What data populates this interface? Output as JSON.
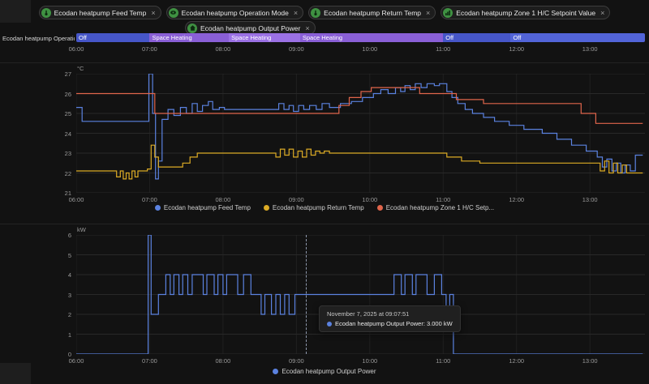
{
  "header": {
    "chips": [
      {
        "label": "Ecodan heatpump Feed Temp",
        "icon": "thermometer-icon"
      },
      {
        "label": "Ecodan heatpump Operation Mode",
        "icon": "eye-icon"
      },
      {
        "label": "Ecodan heatpump Return Temp",
        "icon": "thermometer-icon"
      },
      {
        "label": "Ecodan heatpump Zone 1 H/C Setpoint Value",
        "icon": "chart-icon"
      },
      {
        "label": "Ecodan heatpump Output Power",
        "icon": "home-icon"
      }
    ],
    "chip_close_glyph": "×"
  },
  "timeline": {
    "entity_label": "Ecodan heatpump Operation Mo...",
    "x_range": [
      6,
      13.75
    ],
    "ticks": [
      "06:00",
      "07:00",
      "08:00",
      "09:00",
      "10:00",
      "11:00",
      "12:00",
      "13:00"
    ],
    "segments": [
      {
        "label": "Off",
        "start": 6,
        "end": 7,
        "color": "#4656c8"
      },
      {
        "label": "Space Heating",
        "start": 7,
        "end": 8.08,
        "color": "#8a5fd6"
      },
      {
        "label": "Space Heating",
        "start": 8.08,
        "end": 9.05,
        "color": "#9b71e4"
      },
      {
        "label": "Space Heating",
        "start": 9.05,
        "end": 11,
        "color": "#8a5fd6"
      },
      {
        "label": "Off",
        "start": 11,
        "end": 11.92,
        "color": "#4656c8"
      },
      {
        "label": "Off",
        "start": 11.92,
        "end": 13.75,
        "color": "#5264d8"
      }
    ]
  },
  "chart_data": [
    {
      "type": "line",
      "unit": "°C",
      "x_range": [
        6,
        13.75
      ],
      "y_range": [
        21,
        27
      ],
      "y_ticks": [
        21,
        22,
        23,
        24,
        25,
        26,
        27
      ],
      "x_ticks": [
        "06:00",
        "07:00",
        "08:00",
        "09:00",
        "10:00",
        "11:00",
        "12:00",
        "13:00"
      ],
      "legend_position": "bottom",
      "grid": true,
      "series": [
        {
          "name": "Ecodan heatpump Feed Temp",
          "legend": "Ecodan heatpump Feed Temp",
          "color": "#5b82e0",
          "points": [
            [
              6,
              25.3
            ],
            [
              6.08,
              24.6
            ],
            [
              6.97,
              24.6
            ],
            [
              6.99,
              27
            ],
            [
              7.04,
              25
            ],
            [
              7.08,
              21.7
            ],
            [
              7.12,
              22.6
            ],
            [
              7.17,
              24.7
            ],
            [
              7.25,
              25.2
            ],
            [
              7.33,
              24.9
            ],
            [
              7.42,
              25.3
            ],
            [
              7.5,
              25
            ],
            [
              7.58,
              25.5
            ],
            [
              7.65,
              25.1
            ],
            [
              7.72,
              25.4
            ],
            [
              7.8,
              25.6
            ],
            [
              7.86,
              25.2
            ],
            [
              7.95,
              25.3
            ],
            [
              8.02,
              25.2
            ],
            [
              8.7,
              25.2
            ],
            [
              8.76,
              25.5
            ],
            [
              8.83,
              25.2
            ],
            [
              8.9,
              25.4
            ],
            [
              8.96,
              25.1
            ],
            [
              9.03,
              25.4
            ],
            [
              9.1,
              25.2
            ],
            [
              9.18,
              25.4
            ],
            [
              9.27,
              25.2
            ],
            [
              9.35,
              25.5
            ],
            [
              9.45,
              25.3
            ],
            [
              9.6,
              25.5
            ],
            [
              9.75,
              25.6
            ],
            [
              9.9,
              25.8
            ],
            [
              10.05,
              26
            ],
            [
              10.15,
              26.2
            ],
            [
              10.25,
              26
            ],
            [
              10.35,
              26.3
            ],
            [
              10.42,
              26.1
            ],
            [
              10.48,
              26.4
            ],
            [
              10.55,
              26.2
            ],
            [
              10.62,
              26.5
            ],
            [
              10.7,
              26.3
            ],
            [
              10.78,
              26.5
            ],
            [
              10.88,
              26.4
            ],
            [
              10.95,
              26.5
            ],
            [
              11.05,
              26.1
            ],
            [
              11.12,
              25.8
            ],
            [
              11.2,
              25.5
            ],
            [
              11.3,
              25.2
            ],
            [
              11.4,
              25
            ],
            [
              11.55,
              24.8
            ],
            [
              11.7,
              24.6
            ],
            [
              11.9,
              24.4
            ],
            [
              12.1,
              24.2
            ],
            [
              12.35,
              24
            ],
            [
              12.55,
              23.7
            ],
            [
              12.75,
              23.4
            ],
            [
              12.95,
              23.1
            ],
            [
              13.1,
              22.8
            ],
            [
              13.17,
              22.3
            ],
            [
              13.23,
              22.7
            ],
            [
              13.3,
              22.1
            ],
            [
              13.36,
              22.5
            ],
            [
              13.42,
              22
            ],
            [
              13.48,
              22.4
            ],
            [
              13.55,
              22.1
            ],
            [
              13.62,
              22.9
            ],
            [
              13.72,
              22.9
            ]
          ]
        },
        {
          "name": "Ecodan heatpump Return Temp",
          "legend": "Ecodan heatpump Return Temp",
          "color": "#dcab25",
          "points": [
            [
              6,
              22.1
            ],
            [
              6.5,
              22.1
            ],
            [
              6.55,
              21.8
            ],
            [
              6.6,
              22.1
            ],
            [
              6.64,
              21.7
            ],
            [
              6.68,
              22
            ],
            [
              6.72,
              21.7
            ],
            [
              6.76,
              22.1
            ],
            [
              6.8,
              21.8
            ],
            [
              6.84,
              22.1
            ],
            [
              6.97,
              22.2
            ],
            [
              7.02,
              23.4
            ],
            [
              7.07,
              22.8
            ],
            [
              7.12,
              22.3
            ],
            [
              7.35,
              22.3
            ],
            [
              7.45,
              22.5
            ],
            [
              7.55,
              22.8
            ],
            [
              7.65,
              23
            ],
            [
              8.65,
              23
            ],
            [
              8.72,
              22.8
            ],
            [
              8.78,
              23.2
            ],
            [
              8.84,
              22.9
            ],
            [
              8.9,
              23.2
            ],
            [
              8.96,
              22.8
            ],
            [
              9.02,
              23.1
            ],
            [
              9.08,
              22.8
            ],
            [
              9.14,
              23.2
            ],
            [
              9.2,
              22.9
            ],
            [
              9.26,
              23.1
            ],
            [
              9.32,
              23
            ],
            [
              9.38,
              23.1
            ],
            [
              9.45,
              23
            ],
            [
              11.05,
              22.8
            ],
            [
              11.25,
              22.6
            ],
            [
              11.5,
              22.5
            ],
            [
              13.08,
              22.5
            ],
            [
              13.14,
              22.1
            ],
            [
              13.2,
              22.6
            ],
            [
              13.26,
              22
            ],
            [
              13.32,
              22.5
            ],
            [
              13.38,
              22
            ],
            [
              13.44,
              22.4
            ],
            [
              13.5,
              22
            ],
            [
              13.72,
              22
            ]
          ]
        },
        {
          "name": "Ecodan heatpump Zone 1 H/C Setpoint Value",
          "legend": "Ecodan heatpump Zone 1 H/C Setp...",
          "color": "#e0654b",
          "points": [
            [
              6,
              26
            ],
            [
              7.07,
              25
            ],
            [
              9.58,
              25.4
            ],
            [
              9.72,
              25.8
            ],
            [
              9.88,
              26.1
            ],
            [
              10.02,
              26.3
            ],
            [
              10.68,
              26
            ],
            [
              11.18,
              25.7
            ],
            [
              11.55,
              25.5
            ],
            [
              12.88,
              25
            ],
            [
              13.08,
              24.5
            ],
            [
              13.72,
              24.5
            ]
          ]
        }
      ]
    },
    {
      "type": "line",
      "unit": "kW",
      "x_range": [
        6,
        13.75
      ],
      "y_range": [
        0,
        6
      ],
      "y_ticks": [
        0,
        1,
        2,
        3,
        4,
        5,
        6
      ],
      "x_ticks": [
        "06:00",
        "07:00",
        "08:00",
        "09:00",
        "10:00",
        "11:00",
        "12:00",
        "13:00"
      ],
      "legend_position": "bottom",
      "grid": true,
      "series": [
        {
          "name": "Ecodan heatpump Output Power",
          "legend": "Ecodan heatpump Output Power",
          "color": "#5b82e0",
          "points": [
            [
              6,
              0
            ],
            [
              6.96,
              0
            ],
            [
              6.98,
              6
            ],
            [
              7.02,
              2
            ],
            [
              7.12,
              3
            ],
            [
              7.18,
              3
            ],
            [
              7.22,
              4
            ],
            [
              7.28,
              3
            ],
            [
              7.33,
              4
            ],
            [
              7.4,
              3
            ],
            [
              7.45,
              4
            ],
            [
              7.52,
              3
            ],
            [
              7.58,
              4
            ],
            [
              7.68,
              4
            ],
            [
              7.73,
              3
            ],
            [
              7.78,
              4
            ],
            [
              7.88,
              3
            ],
            [
              7.93,
              4
            ],
            [
              8,
              3
            ],
            [
              8.05,
              4
            ],
            [
              8.16,
              4
            ],
            [
              8.2,
              3
            ],
            [
              8.28,
              4
            ],
            [
              8.38,
              3
            ],
            [
              8.52,
              2
            ],
            [
              8.57,
              3
            ],
            [
              8.66,
              2
            ],
            [
              8.72,
              3
            ],
            [
              8.78,
              2
            ],
            [
              8.84,
              3
            ],
            [
              8.9,
              2
            ],
            [
              8.98,
              3
            ],
            [
              10.28,
              3
            ],
            [
              10.33,
              4
            ],
            [
              10.43,
              3
            ],
            [
              10.48,
              4
            ],
            [
              10.58,
              3
            ],
            [
              10.63,
              4
            ],
            [
              10.73,
              4
            ],
            [
              10.78,
              3
            ],
            [
              10.88,
              4
            ],
            [
              10.98,
              3
            ],
            [
              11.04,
              2
            ],
            [
              11.09,
              3
            ],
            [
              11.14,
              0
            ],
            [
              13.72,
              0
            ]
          ]
        }
      ]
    }
  ],
  "tooltip": {
    "title": "November 7, 2025 at 09:07:51",
    "x_hour": 9.131,
    "entries": [
      {
        "label": "Ecodan heatpump Output Power: 3.000 kW",
        "color": "#5b82e0"
      }
    ]
  },
  "colors": {
    "background": "#121212",
    "grid_horizontal": "#282828",
    "grid_vertical": "#202020",
    "feed_temp": "#5b82e0",
    "return_temp": "#dcab25",
    "setpoint": "#e0654b",
    "output_power": "#5b82e0",
    "timeline_off": "#4656c8",
    "timeline_heating": "#8a5fd6",
    "chip_icon_bg": "#3f9142"
  }
}
